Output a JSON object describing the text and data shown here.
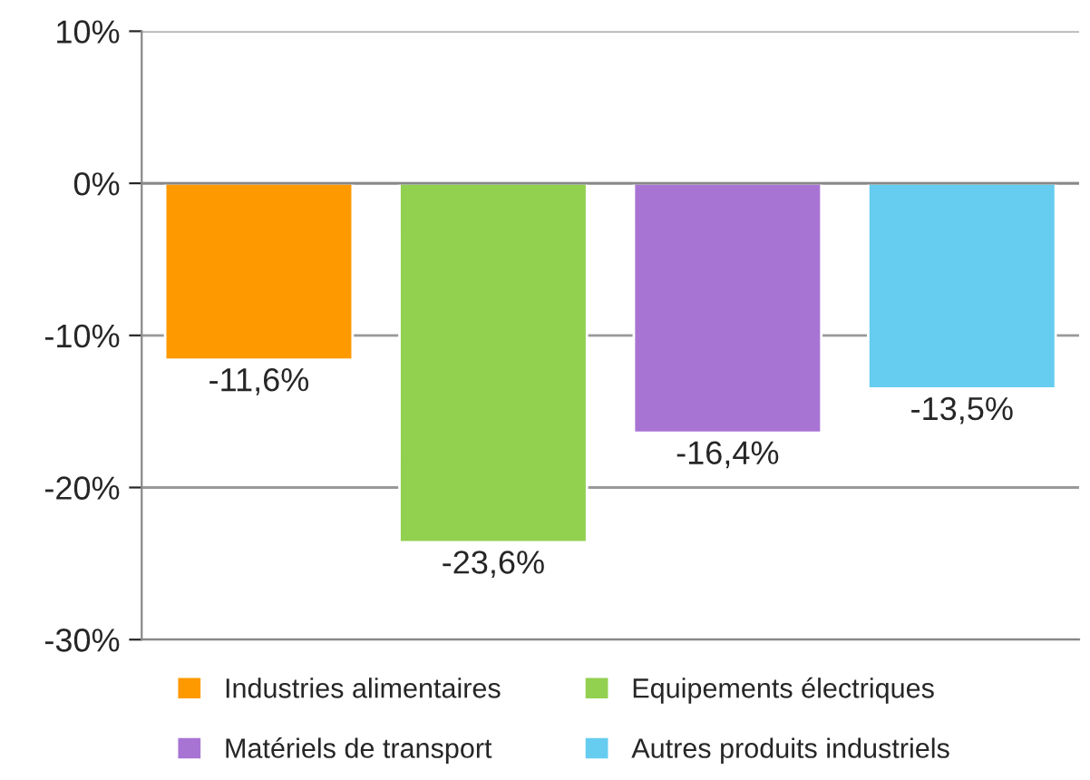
{
  "chart_data": {
    "type": "bar",
    "categories": [
      null,
      null,
      null,
      null
    ],
    "series": [
      {
        "name": "Industries alimentaires",
        "color": "#ff9900",
        "values": [
          -11.6,
          null,
          null,
          null
        ],
        "value_labels": [
          "-11,6%",
          null,
          null,
          null
        ]
      },
      {
        "name": "Equipements électriques",
        "color": "#92d050",
        "values": [
          null,
          -23.6,
          null,
          null
        ],
        "value_labels": [
          null,
          "-23,6%",
          null,
          null
        ]
      },
      {
        "name": "Matériels de transport",
        "color": "#a874d4",
        "values": [
          null,
          null,
          -16.4,
          null
        ],
        "value_labels": [
          null,
          null,
          "-16,4%",
          null
        ]
      },
      {
        "name": "Autres produits industriels",
        "color": "#66ccf0",
        "values": [
          null,
          null,
          null,
          -13.5
        ],
        "value_labels": [
          null,
          null,
          null,
          "-13,5%"
        ]
      }
    ],
    "ylim": [
      -30,
      10
    ],
    "yticks": [
      {
        "value": -30,
        "label": "-30%"
      },
      {
        "value": -20,
        "label": "-20%"
      },
      {
        "value": -10,
        "label": "-10%"
      },
      {
        "value": 0,
        "label": "0%"
      },
      {
        "value": 10,
        "label": "10%"
      }
    ],
    "grid": "y",
    "legend": "bottom",
    "tick_labels": "y"
  }
}
